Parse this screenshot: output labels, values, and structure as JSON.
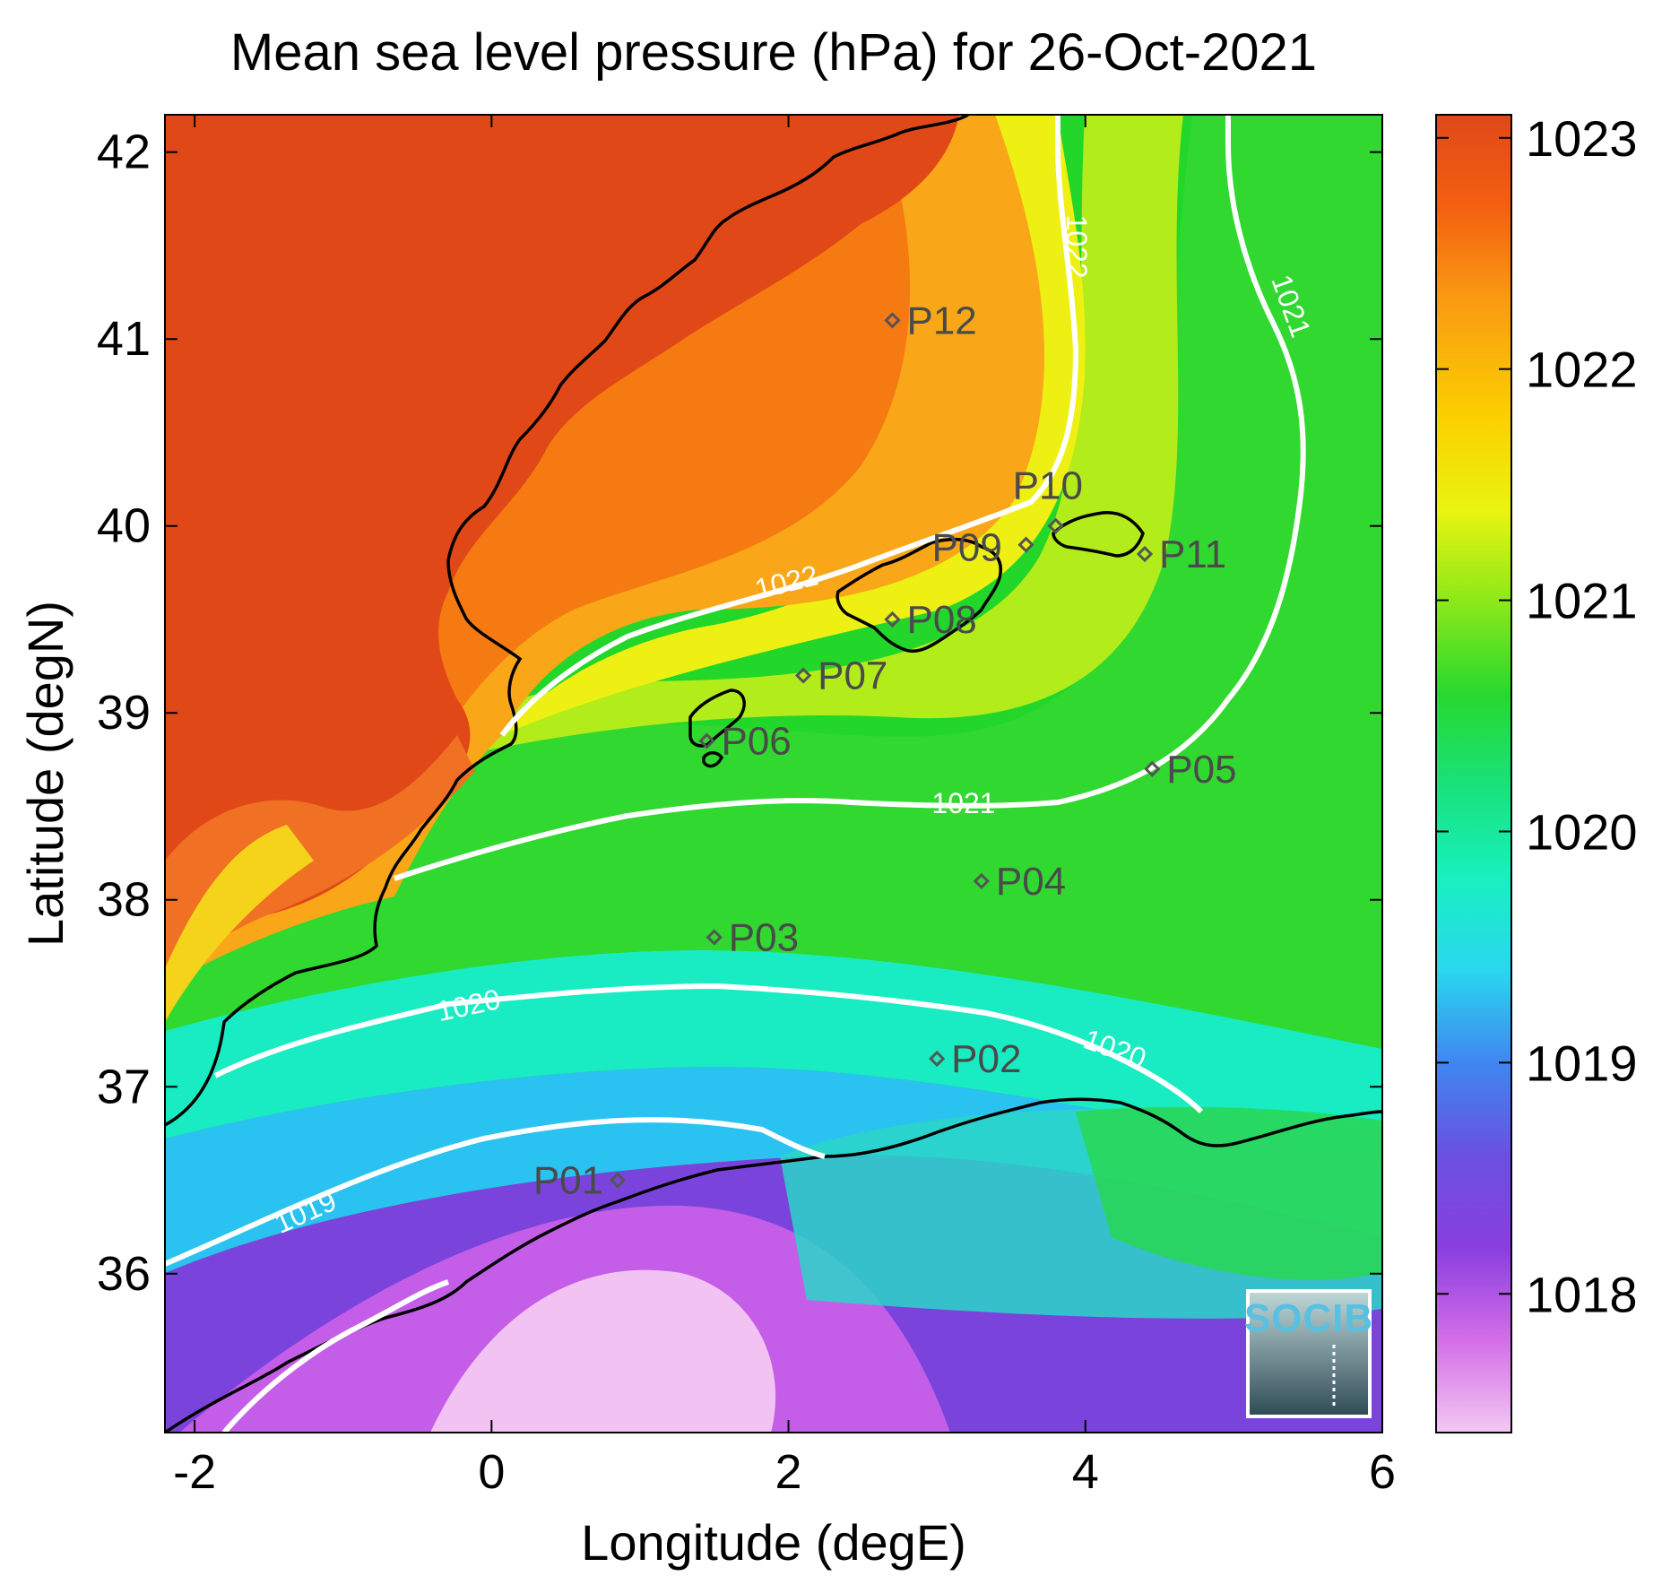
{
  "title": "Mean sea level pressure (hPa) for 26-Oct-2021",
  "x_axis": {
    "label": "Longitude (degE)",
    "ticks": [
      -2,
      0,
      2,
      4,
      6
    ],
    "range": [
      -2.2,
      6.0
    ]
  },
  "y_axis": {
    "label": "Latitude (degN)",
    "ticks": [
      36,
      37,
      38,
      39,
      40,
      41,
      42
    ],
    "range": [
      35.15,
      42.2
    ]
  },
  "colorbar": {
    "ticks": [
      1018,
      1019,
      1020,
      1021,
      1022,
      1023
    ],
    "range": [
      1017.4,
      1023.1
    ]
  },
  "stations": [
    {
      "id": "P01",
      "lon": 0.85,
      "lat": 36.5
    },
    {
      "id": "P02",
      "lon": 3.0,
      "lat": 37.15
    },
    {
      "id": "P03",
      "lon": 1.5,
      "lat": 37.8
    },
    {
      "id": "P04",
      "lon": 3.3,
      "lat": 38.1
    },
    {
      "id": "P05",
      "lon": 4.45,
      "lat": 38.7
    },
    {
      "id": "P06",
      "lon": 1.45,
      "lat": 38.85
    },
    {
      "id": "P07",
      "lon": 2.1,
      "lat": 39.2
    },
    {
      "id": "P08",
      "lon": 2.7,
      "lat": 39.5
    },
    {
      "id": "P09",
      "lon": 3.6,
      "lat": 39.9
    },
    {
      "id": "P10",
      "lon": 3.8,
      "lat": 40.0
    },
    {
      "id": "P11",
      "lon": 4.4,
      "lat": 39.85
    },
    {
      "id": "P12",
      "lon": 2.7,
      "lat": 41.1
    }
  ],
  "contour_labels": [
    "1019",
    "1020",
    "1020",
    "1021",
    "1021",
    "1022",
    "1022"
  ],
  "logo": {
    "text": "SOCIB"
  }
}
